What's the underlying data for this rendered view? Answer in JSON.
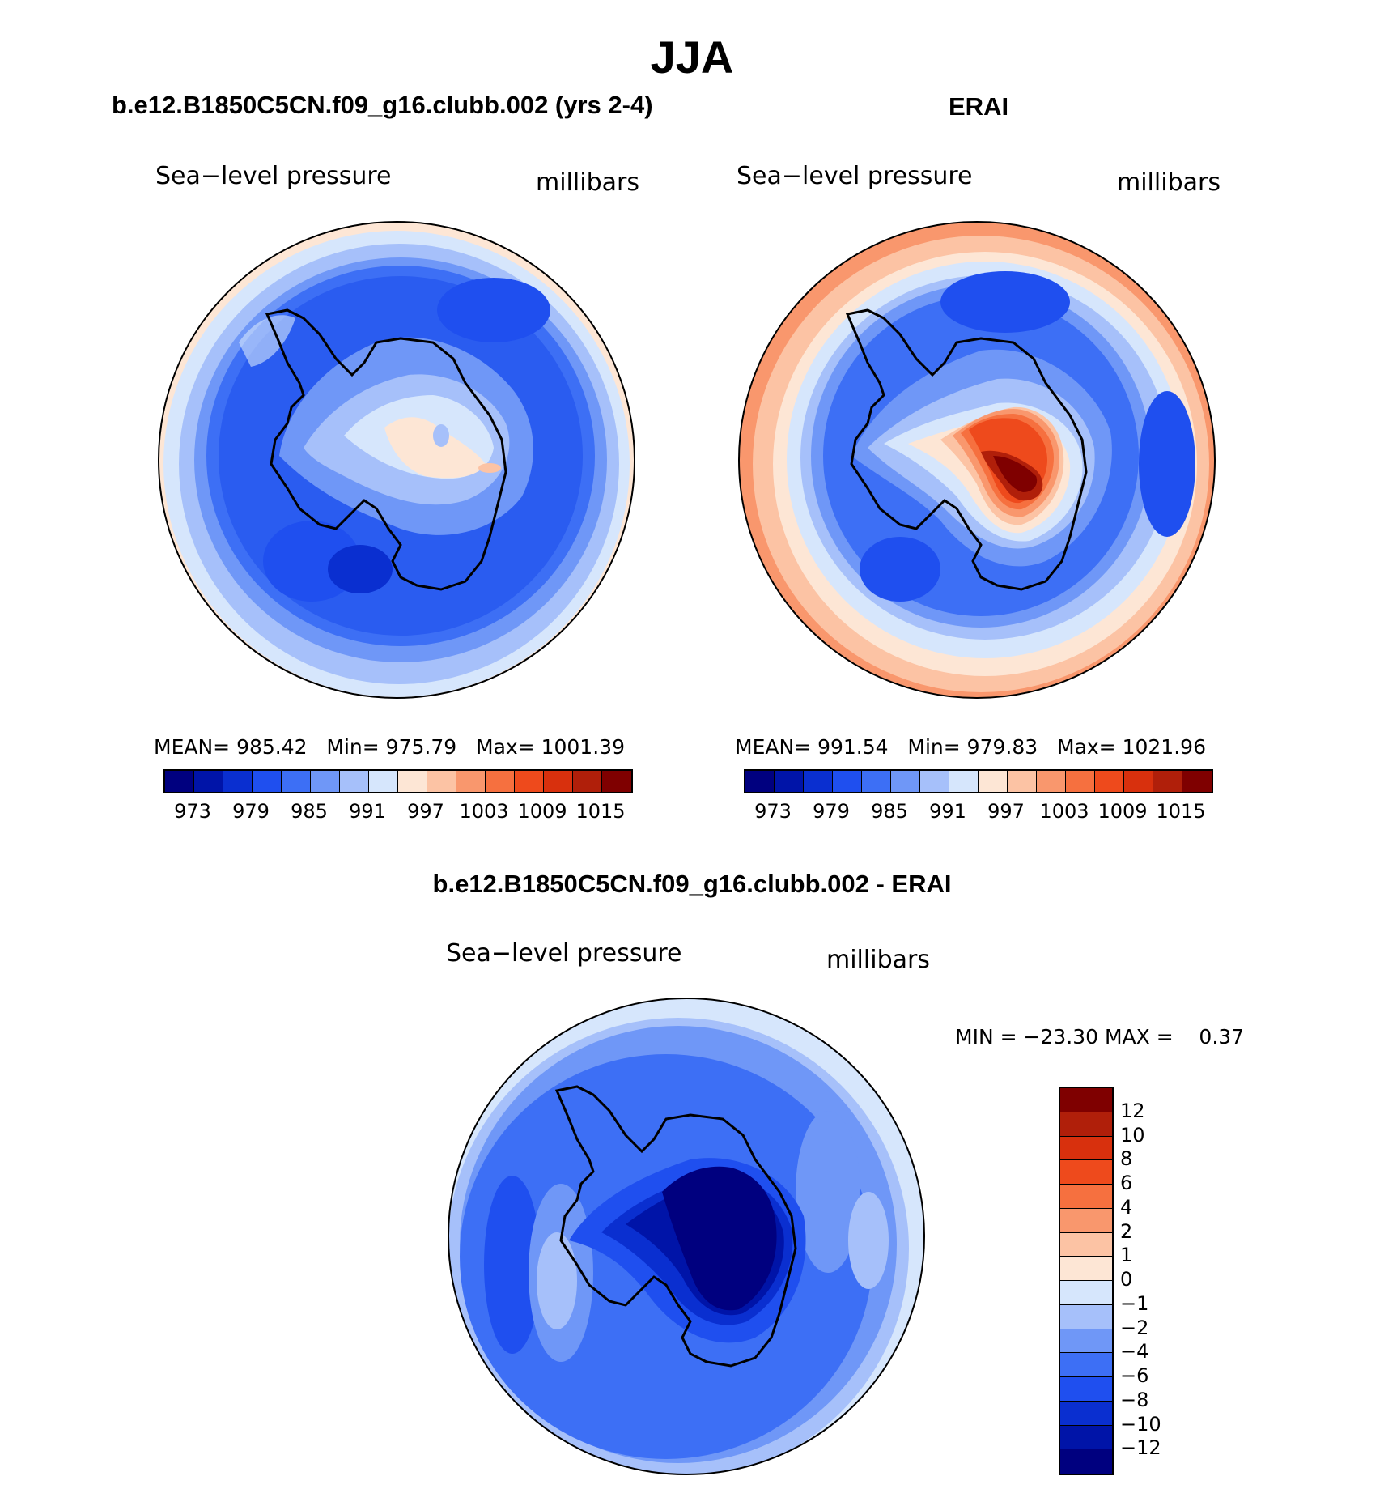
{
  "title": "JJA",
  "panels": [
    {
      "title": "b.e12.B1850C5CN.f09_g16.clubb.002 (yrs 2-4)",
      "variable": "Sea−level pressure",
      "units": "millibars",
      "stats": {
        "mean_label": "MEAN=",
        "mean": "985.42",
        "min_label": "Min=",
        "min": "975.79",
        "max_label": "Max=",
        "max": "1001.39"
      }
    },
    {
      "title": "ERAI",
      "variable": "Sea−level pressure",
      "units": "millibars",
      "stats": {
        "mean_label": "MEAN=",
        "mean": "991.54",
        "min_label": "Min=",
        "min": "979.83",
        "max_label": "Max=",
        "max": "1021.96"
      }
    },
    {
      "title": "b.e12.B1850C5CN.f09_g16.clubb.002 - ERAI",
      "variable": "Sea−level pressure",
      "units": "millibars",
      "stats": {
        "text": "MIN = −23.30 MAX =    0.37"
      }
    }
  ],
  "colorbar_horizontal": {
    "ticks": [
      "973",
      "979",
      "985",
      "991",
      "997",
      "1003",
      "1009",
      "1015"
    ],
    "colors": [
      "#00007f",
      "#0014a8",
      "#0a2fd0",
      "#1f4fef",
      "#3d6ff5",
      "#6f97f7",
      "#a6c0fa",
      "#d6e6fc",
      "#fde6d5",
      "#fcc3a4",
      "#f9976d",
      "#f6703f",
      "#ee4a1c",
      "#d8300d",
      "#b01f0a",
      "#7f0000"
    ]
  },
  "colorbar_vertical": {
    "labels": [
      "12",
      "10",
      "8",
      "6",
      "4",
      "2",
      "1",
      "0",
      "−1",
      "−2",
      "−4",
      "−6",
      "−8",
      "−10",
      "−12"
    ],
    "colors": [
      "#7f0000",
      "#b01f0a",
      "#d8300d",
      "#ee4a1c",
      "#f6703f",
      "#f9976d",
      "#fcc3a4",
      "#fde6d5",
      "#d6e6fc",
      "#a6c0fa",
      "#6f97f7",
      "#3d6ff5",
      "#1f4fef",
      "#0a2fd0",
      "#0014a8",
      "#00007f"
    ]
  },
  "maps": [
    {
      "background": "#2a5cf0",
      "outer_ring": "#a6c0fa",
      "rim": "#fde6d5",
      "interior": [
        "#3d6ff5",
        "#d6e6fc",
        "#fde6d5"
      ]
    },
    {
      "background": "#3d6ff5",
      "outer_ring": "#a6c0fa",
      "rim": "#fcc3a4",
      "interior": [
        "#d6e6fc",
        "#ee4a1c",
        "#7f0000"
      ]
    },
    {
      "background": "#3d6ff5",
      "outer_ring": "#6f97f7",
      "rim": "#d6e6fc",
      "interior": [
        "#1f4fef",
        "#0a2fd0",
        "#00007f"
      ]
    }
  ]
}
